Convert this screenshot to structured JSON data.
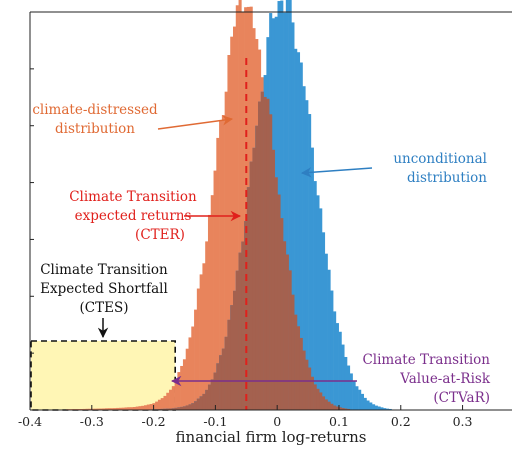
{
  "chart_data": {
    "type": "histogram",
    "xlabel": "financial firm log-returns",
    "ylabel": "",
    "xlim": [
      -0.4,
      0.38
    ],
    "xticks": [
      -0.4,
      -0.3,
      -0.2,
      -0.1,
      0,
      0.1,
      0.2,
      0.3
    ],
    "xtick_labels": [
      "-0.4",
      "-0.3",
      "-0.2",
      "-0.1",
      "0",
      "0.1",
      "0.2",
      "0.3"
    ],
    "grid": false,
    "series": [
      {
        "key": "climate",
        "color": "#e8845c",
        "mean": -0.05,
        "sd": 0.048,
        "peak": 1.0,
        "left_tail_mass": 0.06,
        "left_tail_scale": 0.085,
        "range": [
          -0.4,
          0.2
        ]
      },
      {
        "key": "unconditional",
        "color": "#3a97d4",
        "mean": 0.01,
        "sd": 0.05,
        "peak": 1.03,
        "left_tail_mass": 0.02,
        "left_tail_scale": 0.09,
        "range": [
          -0.35,
          0.3
        ]
      }
    ],
    "overlap_color": "#a4614f",
    "cter_value": -0.05,
    "ctvar_value": -0.165,
    "ctes_region": [
      -0.4,
      -0.165
    ],
    "annotations": [
      {
        "key": "climate-distressed",
        "lines": [
          "climate-distressed",
          "distribution"
        ],
        "color": "#e06a34"
      },
      {
        "key": "unconditional",
        "lines": [
          "unconditional",
          "distribution"
        ],
        "color": "#2e7fc2"
      },
      {
        "key": "cter",
        "lines": [
          "Climate Transition",
          "expected returns",
          "(CTER)"
        ],
        "color": "#e0201c"
      },
      {
        "key": "ctes",
        "lines": [
          "Climate Transition",
          "Expected Shortfall",
          "(CTES)"
        ],
        "color": "#111111"
      },
      {
        "key": "ctvar",
        "lines": [
          "Climate Transition",
          "Value-at-Risk",
          "(CTVaR)"
        ],
        "color": "#7b2f8c"
      }
    ]
  }
}
